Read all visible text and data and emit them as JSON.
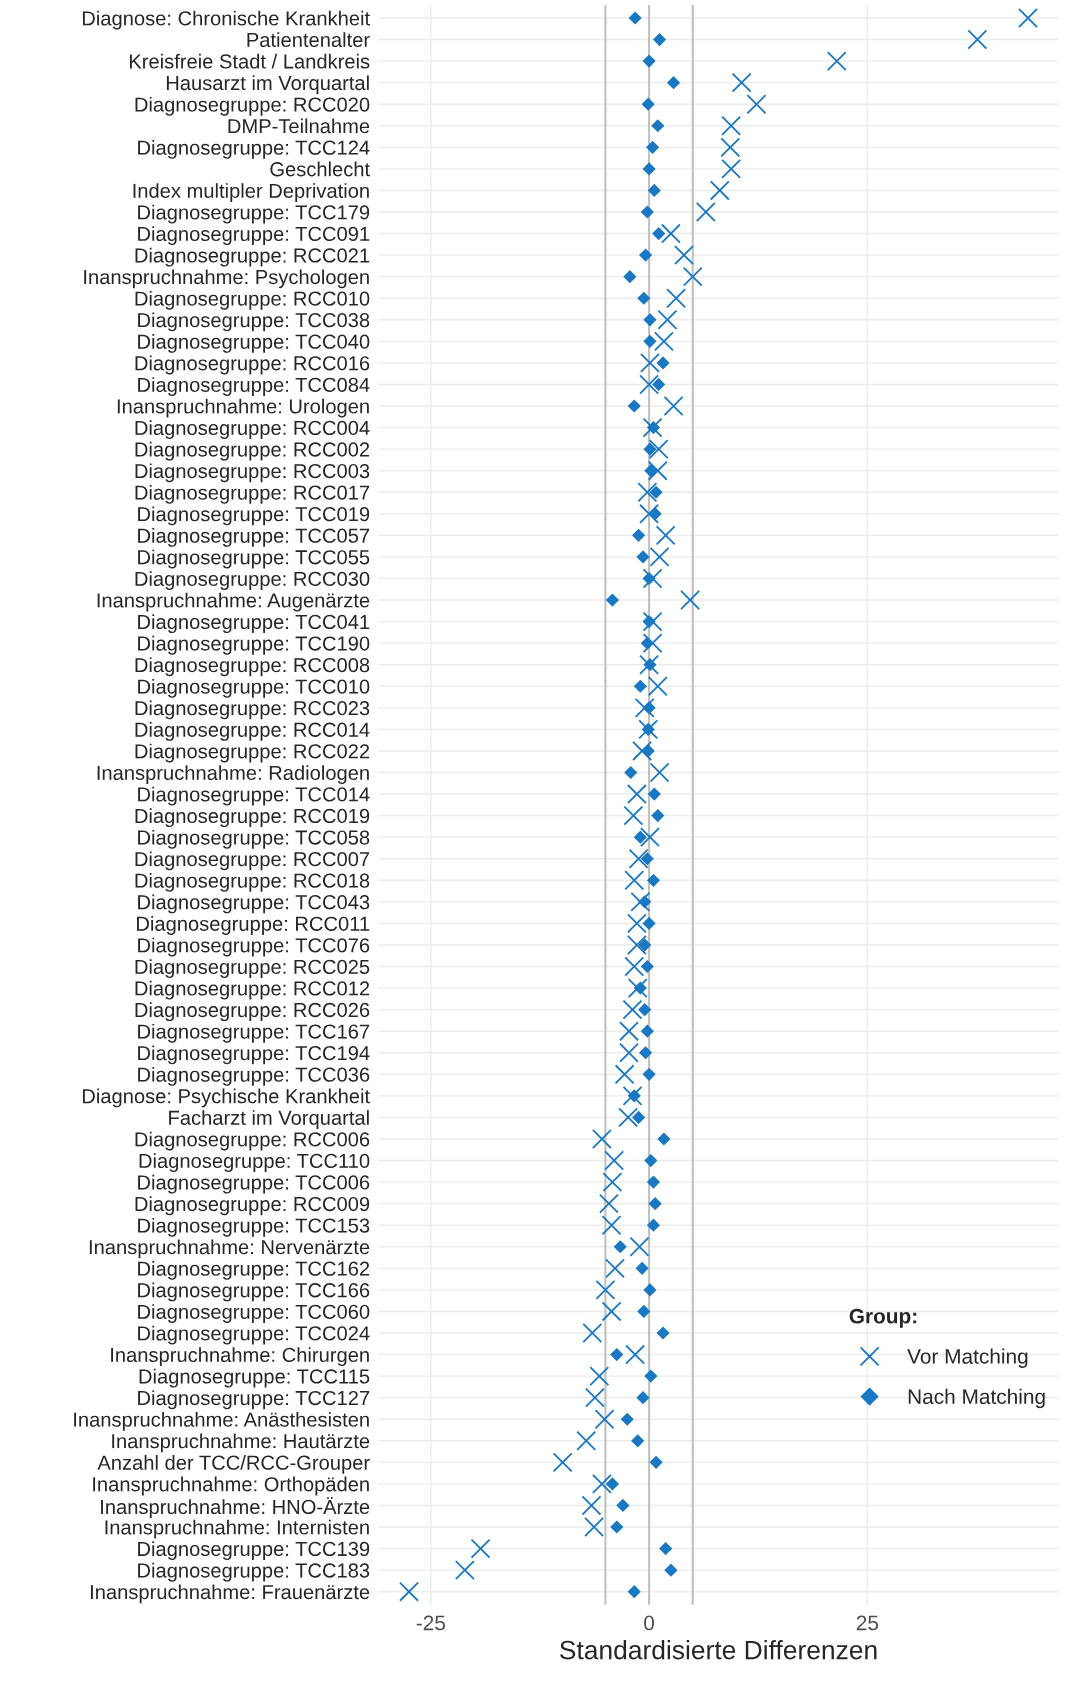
{
  "chart_data": {
    "type": "scatter",
    "orientation": "horizontal",
    "xlabel": "Standardisierte Differenzen",
    "legend_title": "Group:",
    "categories": [
      "Diagnose: Chronische Krankheit",
      "Patientenalter",
      "Kreisfreie Stadt / Landkreis",
      "Hausarzt im Vorquartal",
      "Diagnosegruppe: RCC020",
      "DMP-Teilnahme",
      "Diagnosegruppe: TCC124",
      "Geschlecht",
      "Index multipler Deprivation",
      "Diagnosegruppe: TCC179",
      "Diagnosegruppe: TCC091",
      "Diagnosegruppe: RCC021",
      "Inanspruchnahme: Psychologen",
      "Diagnosegruppe: RCC010",
      "Diagnosegruppe: TCC038",
      "Diagnosegruppe: TCC040",
      "Diagnosegruppe: RCC016",
      "Diagnosegruppe: TCC084",
      "Inanspruchnahme: Urologen",
      "Diagnosegruppe: RCC004",
      "Diagnosegruppe: RCC002",
      "Diagnosegruppe: RCC003",
      "Diagnosegruppe: RCC017",
      "Diagnosegruppe: TCC019",
      "Diagnosegruppe: TCC057",
      "Diagnosegruppe: TCC055",
      "Diagnosegruppe: RCC030",
      "Inanspruchnahme: Augenärzte",
      "Diagnosegruppe: TCC041",
      "Diagnosegruppe: TCC190",
      "Diagnosegruppe: RCC008",
      "Diagnosegruppe: TCC010",
      "Diagnosegruppe: RCC023",
      "Diagnosegruppe: RCC014",
      "Diagnosegruppe: RCC022",
      "Inanspruchnahme: Radiologen",
      "Diagnosegruppe: TCC014",
      "Diagnosegruppe: RCC019",
      "Diagnosegruppe: TCC058",
      "Diagnosegruppe: RCC007",
      "Diagnosegruppe: RCC018",
      "Diagnosegruppe: TCC043",
      "Diagnosegruppe: RCC011",
      "Diagnosegruppe: TCC076",
      "Diagnosegruppe: RCC025",
      "Diagnosegruppe: RCC012",
      "Diagnosegruppe: RCC026",
      "Diagnosegruppe: TCC167",
      "Diagnosegruppe: TCC194",
      "Diagnosegruppe: TCC036",
      "Diagnose: Psychische Krankheit",
      "Facharzt im Vorquartal",
      "Diagnosegruppe: RCC006",
      "Diagnosegruppe: TCC110",
      "Diagnosegruppe: TCC006",
      "Diagnosegruppe: RCC009",
      "Diagnosegruppe: TCC153",
      "Inanspruchnahme: Nervenärzte",
      "Diagnosegruppe: TCC162",
      "Diagnosegruppe: TCC166",
      "Diagnosegruppe: TCC060",
      "Diagnosegruppe: TCC024",
      "Inanspruchnahme: Chirurgen",
      "Diagnosegruppe: TCC115",
      "Diagnosegruppe: TCC127",
      "Inanspruchnahme: Anästhesisten",
      "Inanspruchnahme: Hautärzte",
      "Anzahl der TCC/RCC-Grouper",
      "Inanspruchnahme: Orthopäden",
      "Inanspruchnahme: HNO-Ärzte",
      "Inanspruchnahme: Internisten",
      "Diagnosegruppe: TCC139",
      "Diagnosegruppe: TCC183",
      "Inanspruchnahme: Frauenärzte"
    ],
    "series": [
      {
        "name": "Vor Matching",
        "color": "#1a78c2",
        "marker": "cross",
        "values": [
          43.4,
          37.6,
          21.5,
          10.6,
          12.3,
          9.4,
          9.3,
          9.4,
          8.1,
          6.5,
          2.5,
          4.0,
          5.0,
          3.1,
          2.1,
          1.7,
          0.1,
          0,
          2.8,
          0.4,
          1.1,
          1.0,
          -0.2,
          0,
          1.9,
          1.2,
          0.4,
          4.7,
          0.4,
          0.4,
          0,
          1.0,
          -0.5,
          -0.1,
          -0.8,
          1.2,
          -1.4,
          -1.8,
          0.1,
          -1.2,
          -1.7,
          -1.0,
          -1.4,
          -1.4,
          -1.7,
          -1.3,
          -1.9,
          -2.3,
          -2.3,
          -2.8,
          -1.9,
          -2.4,
          -5.4,
          -4.0,
          -4.2,
          -4.6,
          -4.3,
          -1.1,
          -3.9,
          -5.0,
          -4.3,
          -6.5,
          -1.6,
          -5.7,
          -6.2,
          -5.1,
          -7.2,
          -9.9,
          -5.4,
          -6.6,
          -6.3,
          -19.3,
          -21.1,
          -27.5
        ]
      },
      {
        "name": "Nach Matching",
        "color": "#1a78c2",
        "marker": "diamond",
        "values": [
          -1.6,
          1.2,
          0,
          2.8,
          -0.1,
          1.0,
          0.4,
          0,
          0.6,
          -0.2,
          1.1,
          -0.4,
          -2.2,
          -0.6,
          0.1,
          0.1,
          1.6,
          1.1,
          -1.7,
          0.5,
          0.1,
          0.2,
          0.8,
          0.7,
          -1.2,
          -0.7,
          0,
          -4.2,
          0,
          -0.2,
          0.1,
          -1.0,
          0,
          -0.1,
          -0.1,
          -2.1,
          0.6,
          1.0,
          -1.0,
          -0.2,
          0.5,
          -0.5,
          0,
          -0.5,
          -0.2,
          -1.0,
          -0.5,
          -0.2,
          -0.4,
          0,
          -1.7,
          -1.2,
          1.7,
          0.2,
          0.5,
          0.7,
          0.5,
          -3.3,
          -0.8,
          0.1,
          -0.6,
          1.6,
          -3.7,
          0.2,
          -0.7,
          -2.5,
          -1.3,
          0.8,
          -4.2,
          -3.0,
          -3.7,
          1.9,
          2.5,
          -1.7
        ]
      }
    ],
    "xlim": [
      -31,
      46.9
    ],
    "xticks": [
      {
        "value": -25,
        "label": "-25"
      },
      0,
      25
    ],
    "ref_lines": [
      {
        "axis": "x",
        "value": -5,
        "color": "#c0c0c0"
      },
      {
        "axis": "x",
        "value": 0,
        "color": "#c0c0c0"
      },
      {
        "axis": "x",
        "value": 5,
        "color": "#c0c0c0"
      }
    ],
    "grid": true,
    "legend": "bottom right"
  }
}
